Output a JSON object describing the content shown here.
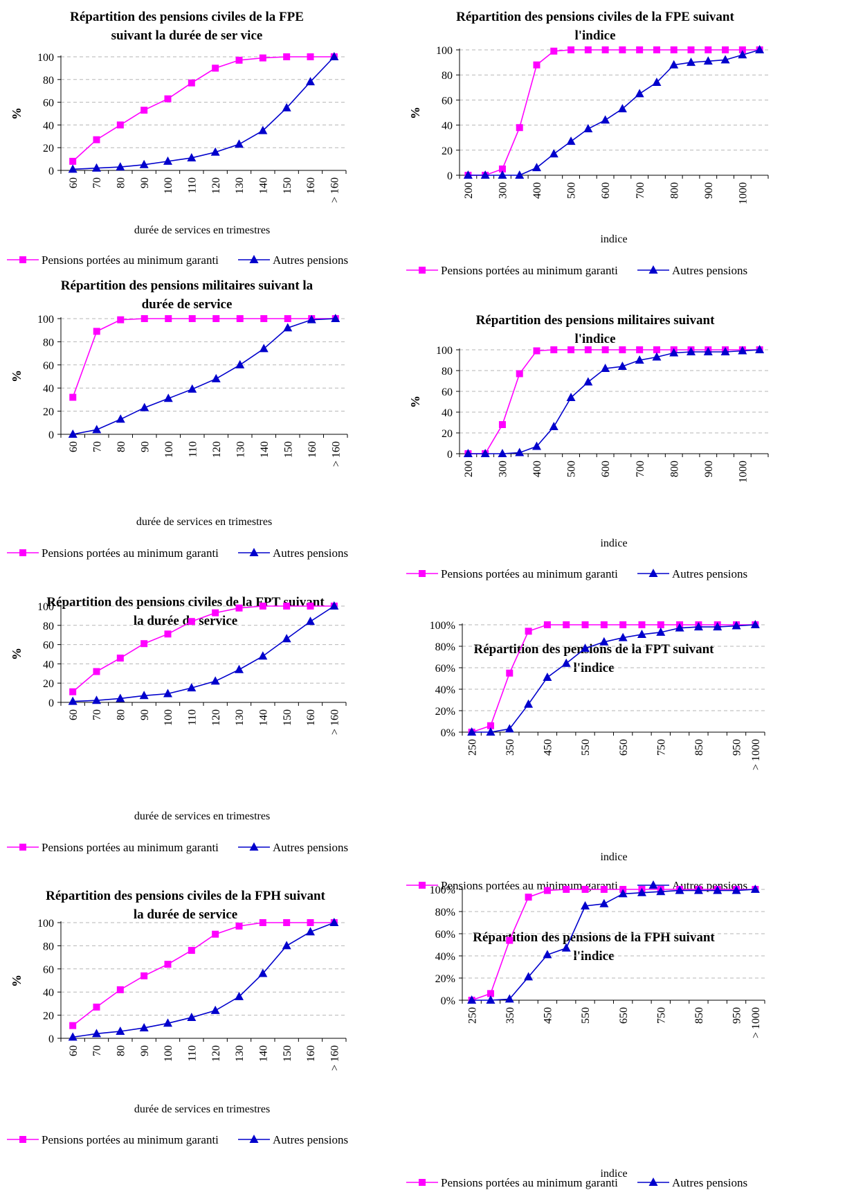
{
  "colors": {
    "pink": "#ff00ff",
    "blue": "#0000cc",
    "grid": "#b5b5b5"
  },
  "chart_data": [
    {
      "type": "line",
      "title": [
        "Répartition des pensions civiles de la FPE",
        "suivant la durée de ser vice"
      ],
      "xlabel": "durée de services en trimestres",
      "ylabel": "%",
      "categories": [
        "60",
        "70",
        "80",
        "90",
        "100",
        "110",
        "120",
        "130",
        "140",
        "150",
        "160",
        "> 160"
      ],
      "yticks": [
        "0",
        "20",
        "40",
        "60",
        "80",
        "100"
      ],
      "ylim": [
        0,
        100
      ],
      "grid": true,
      "legend": "bottom",
      "series": [
        {
          "name": "Pensions portées au minimum garanti",
          "marker": "square",
          "color": "#ff00ff",
          "values": [
            8,
            27,
            40,
            53,
            63,
            77,
            90,
            97,
            99,
            100,
            100,
            100
          ]
        },
        {
          "name": "Autres pensions",
          "marker": "triangle",
          "color": "#0000cc",
          "values": [
            1,
            2,
            3,
            5,
            8,
            11,
            16,
            23,
            35,
            55,
            78,
            100
          ]
        }
      ]
    },
    {
      "type": "line",
      "title": [
        "Répartition des pensions civiles de la FPE suivant",
        "l'indice"
      ],
      "xlabel": "indice",
      "ylabel": "%",
      "x": [
        200,
        250,
        300,
        350,
        400,
        450,
        500,
        550,
        600,
        650,
        700,
        750,
        800,
        850,
        900,
        950,
        1000,
        1050
      ],
      "categories": [
        "200",
        "",
        "300",
        "",
        "400",
        "",
        "500",
        "",
        "600",
        "",
        "700",
        "",
        "800",
        "",
        "900",
        "",
        "1000",
        ""
      ],
      "yticks": [
        "0",
        "20",
        "40",
        "60",
        "80",
        "100"
      ],
      "ylim": [
        0,
        100
      ],
      "grid": true,
      "legend": "bottom",
      "series": [
        {
          "name": "Pensions portées au minimum garanti",
          "marker": "square",
          "color": "#ff00ff",
          "values": [
            0,
            0,
            5,
            38,
            88,
            99,
            100,
            100,
            100,
            100,
            100,
            100,
            100,
            100,
            100,
            100,
            100,
            100
          ]
        },
        {
          "name": "Autres pensions",
          "marker": "triangle",
          "color": "#0000cc",
          "values": [
            0,
            0,
            0,
            0,
            6,
            17,
            27,
            37,
            44,
            53,
            65,
            74,
            88,
            90,
            91,
            92,
            96,
            100
          ]
        }
      ]
    },
    {
      "type": "line",
      "title": [
        "Répartition des pensions militaires suivant la",
        "durée de service"
      ],
      "xlabel": "durée de services en trimestres",
      "ylabel": "%",
      "categories": [
        "60",
        "70",
        "80",
        "90",
        "100",
        "110",
        "120",
        "130",
        "140",
        "150",
        "160",
        "> 160"
      ],
      "yticks": [
        "0",
        "20",
        "40",
        "60",
        "80",
        "100"
      ],
      "ylim": [
        0,
        100
      ],
      "grid": true,
      "legend": "bottom",
      "series": [
        {
          "name": "Pensions portées au minimum garanti",
          "marker": "square",
          "color": "#ff00ff",
          "values": [
            32,
            89,
            99,
            100,
            100,
            100,
            100,
            100,
            100,
            100,
            100,
            100
          ]
        },
        {
          "name": "Autres pensions",
          "marker": "triangle",
          "color": "#0000cc",
          "values": [
            0,
            4,
            13,
            23,
            31,
            39,
            48,
            60,
            74,
            92,
            99,
            100
          ]
        }
      ]
    },
    {
      "type": "line",
      "title": [
        "Répartition des pensions militaires suivant",
        "l'indice"
      ],
      "xlabel": "indice",
      "ylabel": "%",
      "x": [
        200,
        250,
        300,
        350,
        400,
        450,
        500,
        550,
        600,
        650,
        700,
        750,
        800,
        850,
        900,
        950,
        1000,
        1050
      ],
      "categories": [
        "200",
        "",
        "300",
        "",
        "400",
        "",
        "500",
        "",
        "600",
        "",
        "700",
        "",
        "800",
        "",
        "900",
        "",
        "1000",
        ""
      ],
      "yticks": [
        "0",
        "20",
        "40",
        "60",
        "80",
        "100"
      ],
      "ylim": [
        0,
        100
      ],
      "grid": true,
      "legend": "bottom",
      "series": [
        {
          "name": "Pensions portées au minimum garanti",
          "marker": "square",
          "color": "#ff00ff",
          "values": [
            0,
            0,
            28,
            77,
            99,
            100,
            100,
            100,
            100,
            100,
            100,
            100,
            100,
            100,
            100,
            100,
            100,
            100
          ]
        },
        {
          "name": "Autres pensions",
          "marker": "triangle",
          "color": "#0000cc",
          "values": [
            0,
            0,
            0,
            1,
            7,
            26,
            54,
            69,
            82,
            84,
            90,
            93,
            97,
            98,
            98,
            98,
            99,
            100
          ]
        }
      ]
    },
    {
      "type": "line",
      "title": [
        "Répartition des pensions civiles de la FPT suivant",
        "la durée de service"
      ],
      "xlabel": "durée de services en trimestres",
      "ylabel": "%",
      "categories": [
        "60",
        "70",
        "80",
        "90",
        "100",
        "110",
        "120",
        "130",
        "140",
        "150",
        "160",
        "> 160"
      ],
      "yticks": [
        "0",
        "20",
        "40",
        "60",
        "80",
        "100"
      ],
      "ylim": [
        0,
        100
      ],
      "grid": true,
      "legend": "bottom",
      "series": [
        {
          "name": "Pensions portées au minimum garanti",
          "marker": "square",
          "color": "#ff00ff",
          "values": [
            11,
            32,
            46,
            61,
            71,
            84,
            93,
            98,
            100,
            100,
            100,
            100
          ]
        },
        {
          "name": "Autres pensions",
          "marker": "triangle",
          "color": "#0000cc",
          "values": [
            1,
            2,
            4,
            7,
            9,
            15,
            22,
            34,
            48,
            66,
            84,
            100
          ]
        }
      ]
    },
    {
      "type": "line",
      "title": [
        "Répartition des pensions de la FPT suivant",
        "l'indice"
      ],
      "xlabel": "indice",
      "ylabel": "",
      "categories": [
        "250",
        "300",
        "350",
        "400",
        "450",
        "500",
        "550",
        "600",
        "650",
        "700",
        "750",
        "800",
        "850",
        "900",
        "950",
        "> 1000"
      ],
      "xticks_shown": [
        "250",
        "",
        "350",
        "",
        "450",
        "",
        "550",
        "",
        "650",
        "",
        "750",
        "",
        "850",
        "",
        "950",
        "> 1000"
      ],
      "yticks": [
        "0%",
        "20%",
        "40%",
        "60%",
        "80%",
        "100%"
      ],
      "ylim": [
        0,
        100
      ],
      "grid": true,
      "legend": "bottom",
      "series": [
        {
          "name": "Pensions portées au minimum garanti",
          "marker": "square",
          "color": "#ff00ff",
          "values": [
            0,
            6,
            55,
            94,
            100,
            100,
            100,
            100,
            100,
            100,
            100,
            100,
            100,
            100,
            100,
            100
          ]
        },
        {
          "name": "Autres pensions",
          "marker": "triangle",
          "color": "#0000cc",
          "values": [
            0,
            0,
            3,
            26,
            51,
            64,
            78,
            84,
            88,
            91,
            93,
            97,
            98,
            98,
            99,
            100
          ]
        }
      ]
    },
    {
      "type": "line",
      "title": [
        "Répartition des pensions civiles de la FPH  suivant",
        "la durée de service"
      ],
      "xlabel": "durée de services en trimestres",
      "ylabel": "%",
      "categories": [
        "60",
        "70",
        "80",
        "90",
        "100",
        "110",
        "120",
        "130",
        "140",
        "150",
        "160",
        "> 160"
      ],
      "yticks": [
        "0",
        "20",
        "40",
        "60",
        "80",
        "100"
      ],
      "ylim": [
        0,
        100
      ],
      "grid": true,
      "legend": "bottom",
      "series": [
        {
          "name": "Pensions portées au minimum garanti",
          "marker": "square",
          "color": "#ff00ff",
          "values": [
            11,
            27,
            42,
            54,
            64,
            76,
            90,
            97,
            100,
            100,
            100,
            100
          ]
        },
        {
          "name": "Autres pensions",
          "marker": "triangle",
          "color": "#0000cc",
          "values": [
            1,
            4,
            6,
            9,
            13,
            18,
            24,
            36,
            56,
            80,
            92,
            100
          ]
        }
      ]
    },
    {
      "type": "line",
      "title": [
        "Répartition des pensions de la FPH suivant",
        "l'indice"
      ],
      "xlabel": "indice",
      "ylabel": "",
      "categories": [
        "250",
        "300",
        "350",
        "400",
        "450",
        "500",
        "550",
        "600",
        "650",
        "700",
        "750",
        "800",
        "850",
        "900",
        "950",
        "> 1000"
      ],
      "xticks_shown": [
        "250",
        "",
        "350",
        "",
        "450",
        "",
        "550",
        "",
        "650",
        "",
        "750",
        "",
        "850",
        "",
        "950",
        "> 1000"
      ],
      "yticks": [
        "0%",
        "20%",
        "40%",
        "60%",
        "80%",
        "100%"
      ],
      "ylim": [
        0,
        100
      ],
      "grid": true,
      "legend": "bottom",
      "series": [
        {
          "name": "Pensions portées au minimum garanti",
          "marker": "square",
          "color": "#ff00ff",
          "values": [
            0,
            6,
            54,
            93,
            99,
            100,
            100,
            100,
            100,
            100,
            100,
            100,
            100,
            100,
            100,
            100
          ]
        },
        {
          "name": "Autres pensions",
          "marker": "triangle",
          "color": "#0000cc",
          "values": [
            0,
            0,
            1,
            21,
            41,
            47,
            85,
            87,
            96,
            97,
            98,
            99,
            99,
            99,
            99,
            100
          ]
        }
      ]
    }
  ]
}
